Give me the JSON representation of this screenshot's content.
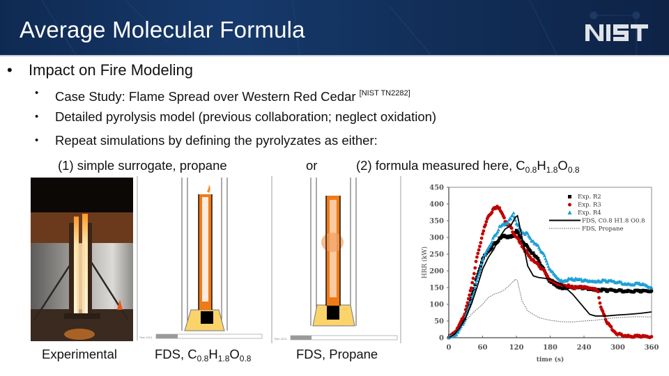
{
  "header": {
    "title": "Average Molecular Formula",
    "logo_text": "NIST",
    "background_color": "#13335f"
  },
  "content": {
    "level1": {
      "bullet": "•",
      "text": "Impact on Fire Modeling"
    },
    "level2": [
      {
        "bullet": "•",
        "text": "Case Study: Flame Spread over Western Red Cedar",
        "citation": "[NIST TN2282]"
      },
      {
        "bullet": "•",
        "text": "Detailed pyrolysis model (previous collaboration; neglect oxidation)"
      },
      {
        "bullet": "•",
        "text": "Repeat simulations by defining the pyrolyzates as either:"
      }
    ],
    "options": {
      "option1": "(1) simple surrogate, propane",
      "connector": "or",
      "option2_prefix": "(2) formula measured here, ",
      "formula": {
        "C": "C",
        "c_sub": "0.8",
        "H": "H",
        "h_sub": "1.8",
        "O": "O",
        "o_sub": "0.8"
      }
    }
  },
  "figures": {
    "captions": {
      "experimental": "Experimental",
      "fds_formula_prefix": "FDS, ",
      "fds_formula": {
        "C": "C",
        "c_sub": "0.8",
        "H": "H",
        "h_sub": "1.8",
        "O": "O",
        "o_sub": "0.8"
      },
      "fds_propane": "FDS, Propane"
    },
    "sim_time_label_1": "Time: 122.6",
    "sim_time_label_2": "Time: 122.6"
  },
  "chart_data": {
    "type": "line",
    "title": "",
    "xlabel": "time (s)",
    "ylabel": "HRR (kW)",
    "xlim": [
      0,
      360
    ],
    "ylim": [
      0,
      450
    ],
    "xticks": [
      0,
      60,
      120,
      180,
      240,
      300,
      360
    ],
    "yticks": [
      0,
      50,
      100,
      150,
      200,
      250,
      300,
      350,
      400,
      450
    ],
    "grid": false,
    "legend_position": "upper right",
    "series": [
      {
        "name": "Exp. R2",
        "marker": "square",
        "color": "#000000",
        "x": [
          0,
          10,
          20,
          30,
          40,
          50,
          60,
          70,
          80,
          90,
          100,
          110,
          120,
          130,
          140,
          150,
          160,
          170,
          180,
          200,
          220,
          240,
          260,
          280,
          300,
          320,
          340,
          360
        ],
        "y": [
          0,
          12,
          35,
          65,
          120,
          180,
          235,
          260,
          280,
          295,
          305,
          300,
          320,
          290,
          270,
          250,
          230,
          200,
          165,
          150,
          150,
          148,
          145,
          142,
          140,
          140,
          138,
          140
        ]
      },
      {
        "name": "Exp. R3",
        "marker": "circle",
        "color": "#c00000",
        "x": [
          0,
          10,
          20,
          30,
          40,
          50,
          60,
          70,
          80,
          86,
          90,
          100,
          110,
          120,
          130,
          140,
          150,
          160,
          170,
          180,
          200,
          220,
          240,
          260,
          265,
          270,
          280,
          290,
          300,
          320,
          340,
          360
        ],
        "y": [
          0,
          15,
          40,
          80,
          150,
          240,
          310,
          365,
          385,
          395,
          385,
          350,
          330,
          300,
          275,
          250,
          230,
          215,
          200,
          170,
          160,
          150,
          150,
          148,
          140,
          90,
          50,
          25,
          10,
          5,
          3,
          3
        ]
      },
      {
        "name": "Exp. R4",
        "marker": "triangle",
        "color": "#1ea0d6",
        "x": [
          0,
          10,
          20,
          30,
          40,
          50,
          60,
          70,
          80,
          90,
          100,
          110,
          115,
          120,
          130,
          140,
          150,
          160,
          170,
          180,
          200,
          220,
          240,
          260,
          280,
          300,
          320,
          340,
          360
        ],
        "y": [
          0,
          5,
          25,
          60,
          110,
          170,
          230,
          270,
          300,
          330,
          340,
          355,
          375,
          340,
          315,
          310,
          285,
          270,
          245,
          200,
          170,
          175,
          170,
          170,
          170,
          165,
          160,
          160,
          150
        ]
      },
      {
        "name": "FDS, C0.8 H1.8 O0.8",
        "line": "solid",
        "color": "#000000",
        "x": [
          0,
          10,
          20,
          30,
          40,
          50,
          60,
          70,
          80,
          90,
          100,
          110,
          118,
          122,
          130,
          140,
          150,
          160,
          170,
          180,
          200,
          220,
          240,
          250,
          260,
          280,
          300,
          320,
          340,
          360
        ],
        "y": [
          0,
          10,
          30,
          60,
          100,
          150,
          205,
          240,
          265,
          300,
          325,
          335,
          360,
          365,
          300,
          215,
          185,
          180,
          178,
          175,
          160,
          130,
          90,
          70,
          65,
          65,
          68,
          70,
          73,
          77
        ]
      },
      {
        "name": "FDS, Propane",
        "line": "dotted",
        "color": "#555555",
        "x": [
          0,
          20,
          40,
          60,
          70,
          80,
          90,
          100,
          110,
          118,
          122,
          126,
          130,
          140,
          160,
          180,
          200,
          220,
          240,
          260,
          280,
          300,
          320,
          340,
          360
        ],
        "y": [
          0,
          30,
          70,
          100,
          120,
          130,
          135,
          145,
          160,
          175,
          170,
          140,
          110,
          80,
          60,
          52,
          48,
          47,
          50,
          52,
          57,
          60,
          62,
          63,
          62
        ]
      }
    ]
  }
}
